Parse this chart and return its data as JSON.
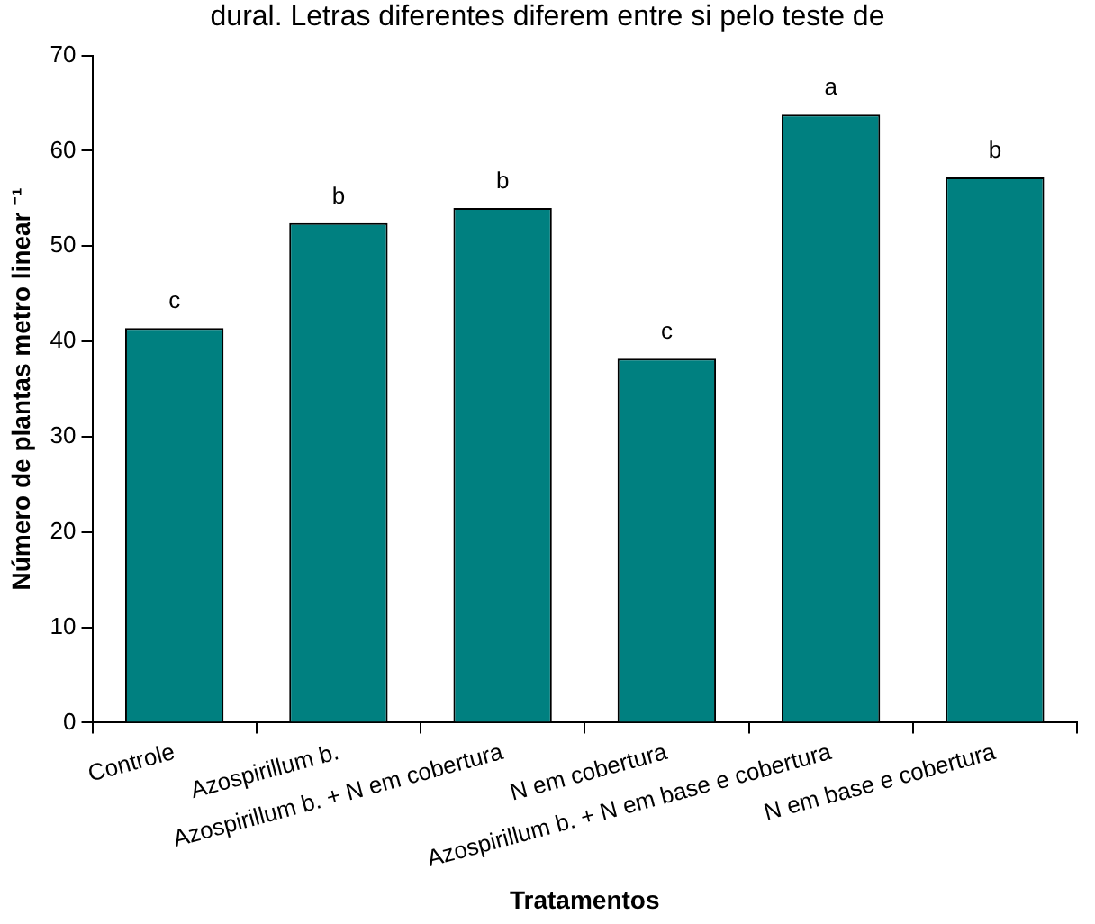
{
  "chart_data": {
    "type": "bar",
    "xlabel": "Tratamentos",
    "ylabel": "Número de plantas metro linear ⁻¹",
    "categories": [
      "Controle",
      "Azospirillum b.",
      "Azospirillum b. + N em cobertura",
      "N em cobertura",
      "Azospirillum b. + N em base e cobertura",
      "N em base e cobertura"
    ],
    "values": [
      41.4,
      52.4,
      54.0,
      38.2,
      63.8,
      57.2
    ],
    "color": "#008080",
    "ylim": [
      0,
      70
    ],
    "yticks": [
      0,
      10,
      20,
      30,
      40,
      50,
      60,
      70
    ],
    "grid": false,
    "annotations": [
      "dural. Letras diferentes diferem entre si pelo teste de",
      {
        "text": "c",
        "x": "Controle",
        "y": 41.4
      },
      {
        "text": "b",
        "x": "Azospirillum b.",
        "y": 52.4
      },
      {
        "text": "b",
        "x": "Azospirillum b. + N em cobertura",
        "y": 54.0
      },
      {
        "text": "c",
        "x": "N em cobertura",
        "y": 38.2
      },
      {
        "text": "a",
        "x": "Azospirillum b. + N em base e cobertura",
        "y": 63.8
      },
      {
        "text": "b",
        "x": "N em base e cobertura",
        "y": 57.2
      }
    ]
  }
}
